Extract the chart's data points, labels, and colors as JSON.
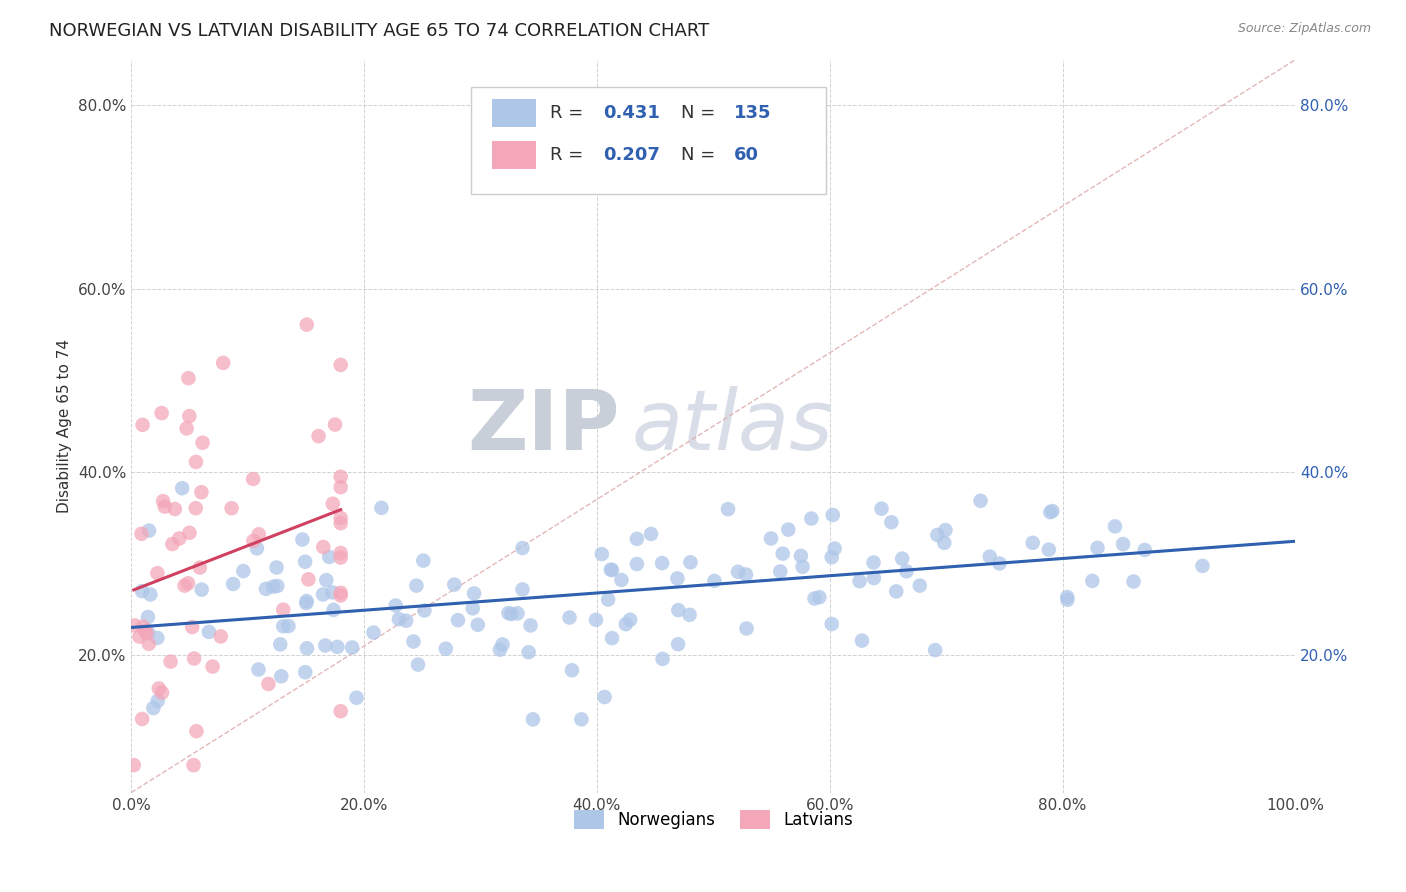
{
  "title": "NORWEGIAN VS LATVIAN DISABILITY AGE 65 TO 74 CORRELATION CHART",
  "source": "Source: ZipAtlas.com",
  "ylabel": "Disability Age 65 to 74",
  "norwegian_R": 0.431,
  "norwegian_N": 135,
  "latvian_R": 0.207,
  "latvian_N": 60,
  "xlim": [
    0.0,
    1.0
  ],
  "ylim": [
    0.05,
    0.85
  ],
  "x_ticks": [
    0.0,
    0.2,
    0.4,
    0.6,
    0.8,
    1.0
  ],
  "x_tick_labels": [
    "0.0%",
    "20.0%",
    "40.0%",
    "60.0%",
    "80.0%",
    "100.0%"
  ],
  "y_ticks": [
    0.2,
    0.4,
    0.6,
    0.8
  ],
  "y_tick_labels": [
    "20.0%",
    "40.0%",
    "60.0%",
    "80.0%"
  ],
  "norwegian_color": "#aec6e8",
  "latvian_color": "#f4a7b9",
  "norwegian_line_color": "#3060b0",
  "latvian_line_color": "#d04060",
  "ref_line_color": "#e0b0b0",
  "background_color": "#ffffff",
  "grid_color": "#cccccc",
  "title_fontsize": 13,
  "label_fontsize": 11,
  "tick_fontsize": 11,
  "watermark_color": "#d8dde8",
  "watermark_fontsize": 60
}
